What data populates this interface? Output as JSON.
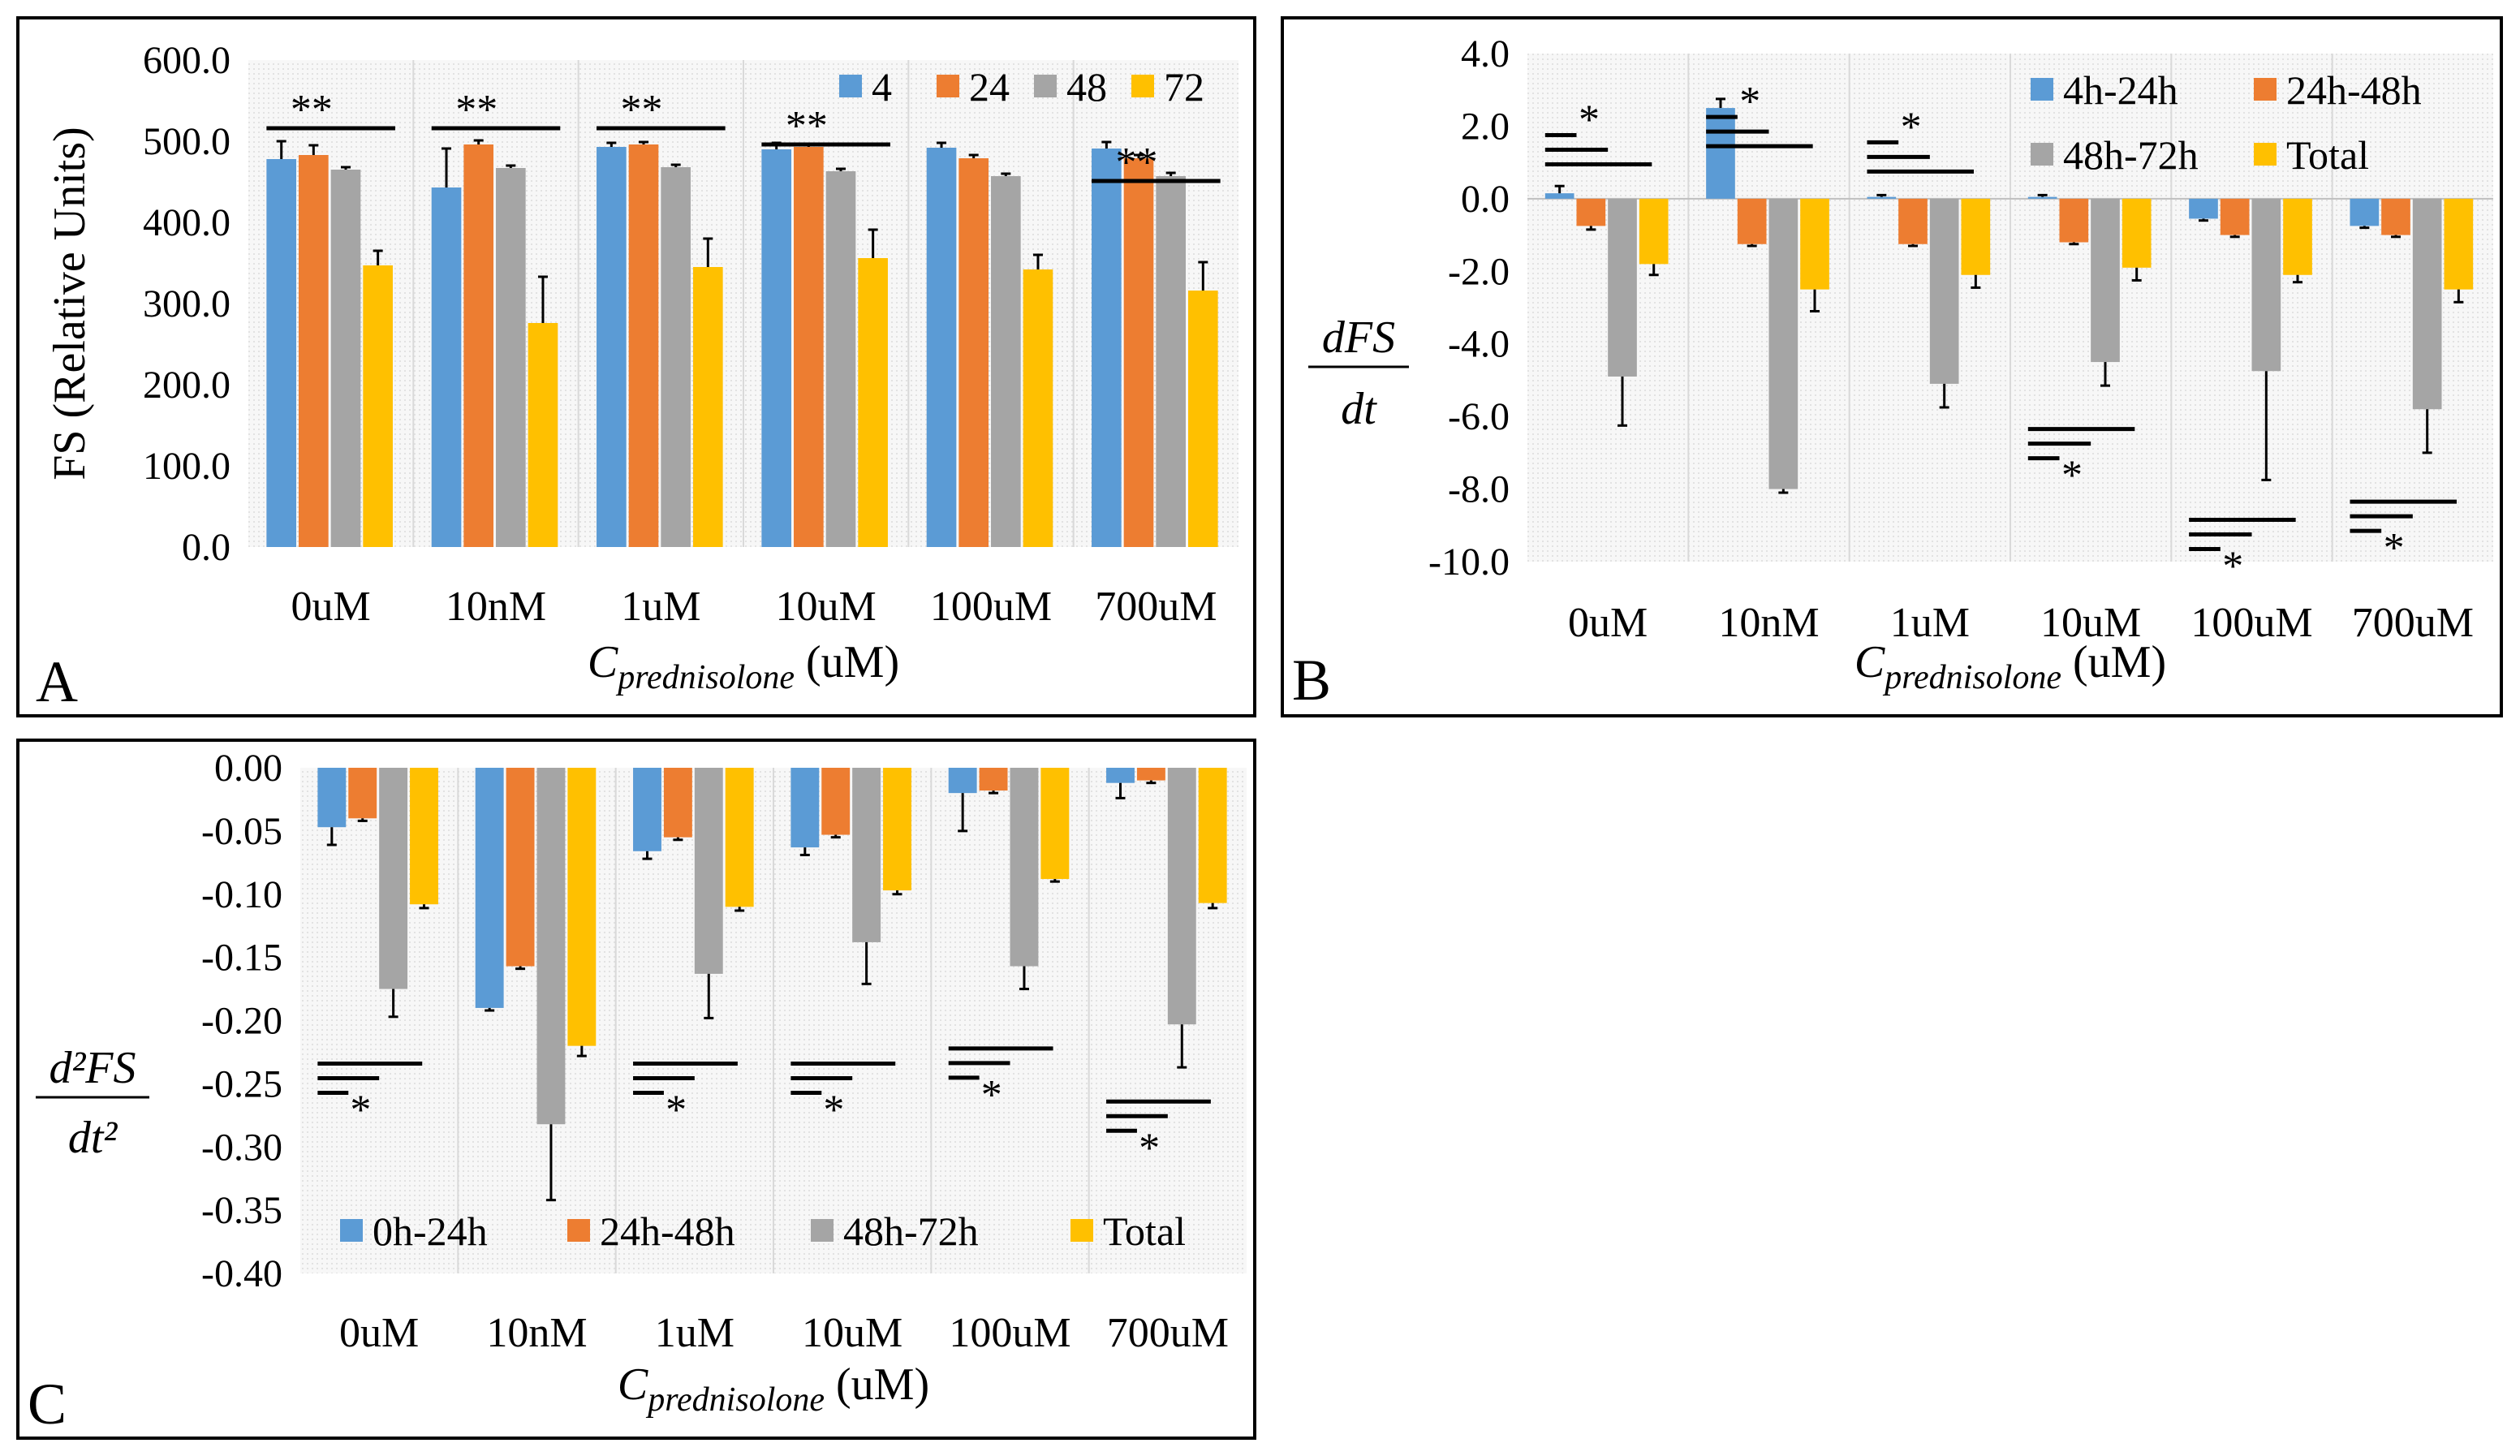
{
  "colors": {
    "s1": "#5B9BD5",
    "s2": "#ED7D31",
    "s3": "#A5A5A5",
    "s4": "#FFC000"
  },
  "chart_data": [
    {
      "panel_letter": "A",
      "type": "bar",
      "ylabel": "FS (Relative Units)",
      "xlabel_main": "C",
      "xlabel_sub": "prednisolone",
      "xlabel_unit": "(uM)",
      "categories": [
        "0uM",
        "10nM",
        "1uM",
        "10uM",
        "100uM",
        "700uM"
      ],
      "ylim": [
        0,
        600
      ],
      "yticks": [
        0,
        100,
        200,
        300,
        400,
        500,
        600
      ],
      "ytick_labels": [
        "0.0",
        "100.0",
        "200.0",
        "300.0",
        "400.0",
        "500.0",
        "600.0"
      ],
      "legend_position": "top-right",
      "series": [
        {
          "name": "4",
          "values": [
            478,
            443,
            493,
            490,
            492,
            491
          ],
          "errors": [
            22,
            48,
            5,
            8,
            6,
            8
          ]
        },
        {
          "name": "24",
          "values": [
            483,
            496,
            496,
            493,
            479,
            479
          ],
          "errors": [
            12,
            5,
            3,
            3,
            4,
            4
          ]
        },
        {
          "name": "48",
          "values": [
            465,
            467,
            468,
            463,
            457,
            457
          ],
          "errors": [
            3,
            3,
            3,
            3,
            3,
            4
          ]
        },
        {
          "name": "72",
          "values": [
            347,
            276,
            345,
            356,
            342,
            316
          ],
          "errors": [
            18,
            57,
            35,
            35,
            18,
            35
          ]
        }
      ],
      "annotations": [
        {
          "text": "**",
          "category": 0,
          "y": 540
        },
        {
          "text": "**",
          "category": 1,
          "y": 540
        },
        {
          "text": "**",
          "category": 2,
          "y": 540
        },
        {
          "text": "**",
          "category": 3,
          "y": 520
        },
        {
          "text": "**",
          "category": 5,
          "y": 475
        }
      ]
    },
    {
      "panel_letter": "B",
      "type": "bar",
      "ylabel_num": "dFS",
      "ylabel_den": "dt",
      "xlabel_main": "C",
      "xlabel_sub": "prednisolone",
      "xlabel_unit": "(uM)",
      "categories": [
        "0uM",
        "10nM",
        "1uM",
        "10uM",
        "100uM",
        "700uM"
      ],
      "ylim": [
        -10,
        4
      ],
      "yticks": [
        -10,
        -8,
        -6,
        -4,
        -2,
        0,
        2,
        4
      ],
      "ytick_labels": [
        "-10.0",
        "-8.0",
        "-6.0",
        "-4.0",
        "-2.0",
        "0.0",
        "2.0",
        "4.0"
      ],
      "legend_position": "top-right",
      "series": [
        {
          "name": "4h-24h",
          "values": [
            0.15,
            2.5,
            0.05,
            0.05,
            -0.55,
            -0.75
          ],
          "errors": [
            0.2,
            0.25,
            0.05,
            0.05,
            0.05,
            0.05
          ]
        },
        {
          "name": "24h-48h",
          "values": [
            -0.75,
            -1.25,
            -1.25,
            -1.2,
            -1.0,
            -1.0
          ],
          "errors": [
            0.1,
            0.05,
            0.05,
            0.05,
            0.05,
            0.05
          ]
        },
        {
          "name": "48h-72h",
          "values": [
            -4.9,
            -8.0,
            -5.1,
            -4.5,
            -4.75,
            -5.8
          ],
          "errors": [
            1.35,
            0.1,
            0.65,
            0.65,
            3.0,
            1.2
          ]
        },
        {
          "name": "Total",
          "values": [
            -1.8,
            -2.5,
            -2.1,
            -1.9,
            -2.1,
            -2.5
          ],
          "errors": [
            0.3,
            0.6,
            0.35,
            0.35,
            0.2,
            0.35
          ]
        }
      ],
      "annotations": [
        {
          "text": "*",
          "category": 0,
          "y": 2.2
        },
        {
          "text": "*",
          "category": 1,
          "y": 2.7
        },
        {
          "text": "*",
          "category": 2,
          "y": 2.0
        },
        {
          "text": "*",
          "category": 3,
          "y": -7.6
        },
        {
          "text": "*",
          "category": 4,
          "y": -10.1
        },
        {
          "text": "*",
          "category": 5,
          "y": -9.6
        }
      ]
    },
    {
      "panel_letter": "C",
      "type": "bar",
      "ylabel_num": "d²FS",
      "ylabel_den": "dt²",
      "xlabel_main": "C",
      "xlabel_sub": "prednisolone",
      "xlabel_unit": "(uM)",
      "categories": [
        "0uM",
        "10nM",
        "1uM",
        "10uM",
        "100uM",
        "700uM"
      ],
      "ylim": [
        -0.4,
        0
      ],
      "yticks": [
        -0.4,
        -0.35,
        -0.3,
        -0.25,
        -0.2,
        -0.15,
        -0.1,
        -0.05,
        0
      ],
      "ytick_labels": [
        "-0.40",
        "-0.35",
        "-0.30",
        "-0.25",
        "-0.20",
        "-0.15",
        "-0.10",
        "-0.05",
        "0.00"
      ],
      "legend_position": "bottom",
      "series": [
        {
          "name": "0h-24h",
          "values": [
            -0.047,
            -0.19,
            -0.066,
            -0.063,
            -0.02,
            -0.012
          ],
          "errors": [
            0.014,
            0.002,
            0.006,
            0.006,
            0.03,
            0.012
          ]
        },
        {
          "name": "24h-48h",
          "values": [
            -0.04,
            -0.157,
            -0.055,
            -0.053,
            -0.018,
            -0.01
          ],
          "errors": [
            0.002,
            0.002,
            0.002,
            0.002,
            0.002,
            0.002
          ]
        },
        {
          "name": "48h-72h",
          "values": [
            -0.175,
            -0.282,
            -0.163,
            -0.138,
            -0.157,
            -0.203
          ],
          "errors": [
            0.022,
            0.06,
            0.035,
            0.033,
            0.018,
            0.034
          ]
        },
        {
          "name": "Total",
          "values": [
            -0.108,
            -0.22,
            -0.11,
            -0.097,
            -0.088,
            -0.107
          ],
          "errors": [
            0.003,
            0.008,
            0.003,
            0.003,
            0.002,
            0.004
          ]
        }
      ],
      "annotations": [
        {
          "text": "*",
          "category": 0,
          "y": -0.27
        },
        {
          "text": "*",
          "category": 2,
          "y": -0.27
        },
        {
          "text": "*",
          "category": 3,
          "y": -0.27
        },
        {
          "text": "*",
          "category": 4,
          "y": -0.258
        },
        {
          "text": "*",
          "category": 5,
          "y": -0.3
        }
      ]
    }
  ]
}
